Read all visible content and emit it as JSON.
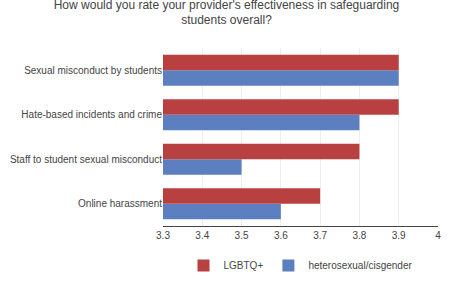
{
  "chart_data": {
    "type": "bar",
    "orientation": "horizontal",
    "title": "How would you rate your provider's effectiveness in safeguarding\nstudents overall?",
    "categories": [
      "Online harassment",
      "Staff to student sexual misconduct",
      "Hate-based incidents and crime",
      "Sexual misconduct by students"
    ],
    "series": [
      {
        "name": "LGBTQ+",
        "color": "#b94040",
        "values": [
          3.7,
          3.8,
          3.9,
          3.9
        ]
      },
      {
        "name": "heterosexual/cisgender",
        "color": "#5b7fbf",
        "values": [
          3.6,
          3.5,
          3.8,
          3.9
        ]
      }
    ],
    "xlim": [
      3.3,
      4.0
    ],
    "xticks": [
      3.3,
      3.4,
      3.5,
      3.6,
      3.7,
      3.8,
      3.9,
      4
    ],
    "grid": true,
    "legend": "bottom"
  }
}
